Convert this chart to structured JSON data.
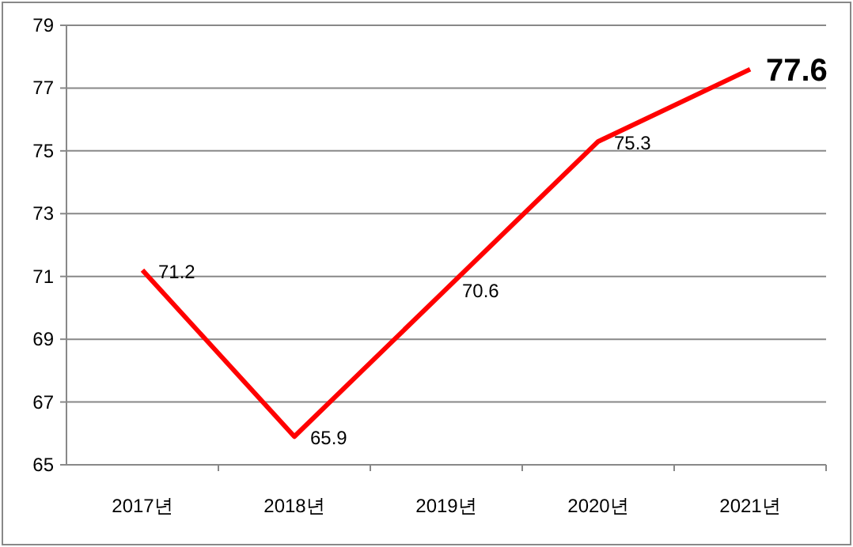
{
  "chart_data": {
    "type": "line",
    "categories": [
      "2017년",
      "2018년",
      "2019년",
      "2020년",
      "2021년"
    ],
    "series": [
      {
        "color": "#ff0000",
        "values": [
          71.2,
          65.9,
          70.6,
          75.3,
          77.6
        ]
      }
    ],
    "ylim": [
      65,
      79
    ],
    "yticks": [
      65,
      67,
      69,
      71,
      73,
      75,
      77,
      79
    ],
    "grid": "y",
    "data_labels": true,
    "marker": "none",
    "line_style": "solid"
  }
}
